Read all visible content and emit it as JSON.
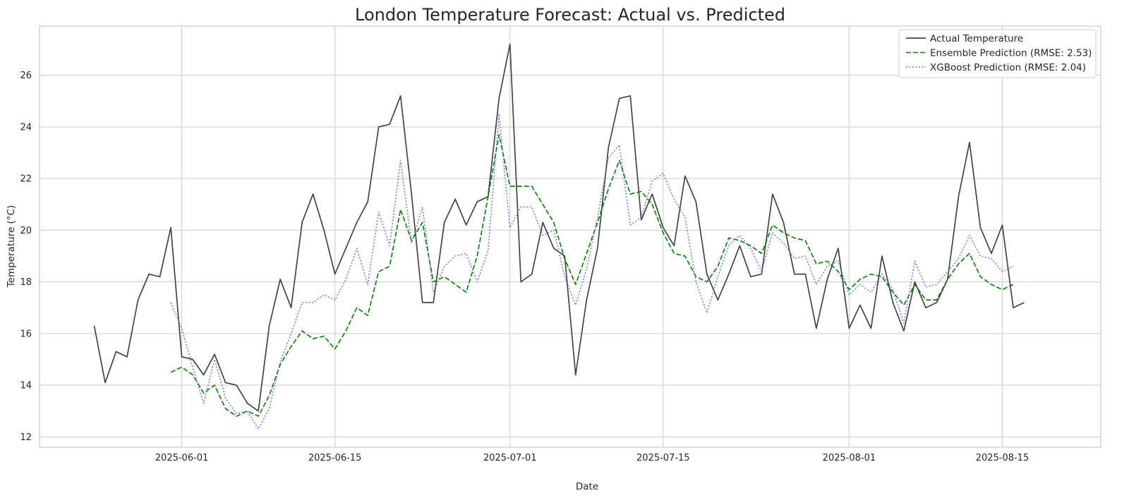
{
  "chart_data": {
    "type": "line",
    "title": "London Temperature Forecast: Actual vs. Predicted",
    "xlabel": "Date",
    "ylabel": "Temperature (°C)",
    "x_start": "2025-05-24",
    "xlim": [
      "2025-05-19",
      "2025-08-24"
    ],
    "ylim": [
      11.6,
      27.9
    ],
    "xticks": [
      "2025-06-01",
      "2025-06-15",
      "2025-07-01",
      "2025-07-15",
      "2025-08-01",
      "2025-08-15"
    ],
    "yticks": [
      12,
      14,
      16,
      18,
      20,
      22,
      24,
      26
    ],
    "grid": true,
    "legend_position": "top-right",
    "series": [
      {
        "name": "Actual Temperature",
        "color": "#444444",
        "style": "solid",
        "start": "2025-05-24",
        "values": [
          16.3,
          14.1,
          15.3,
          15.1,
          17.3,
          18.3,
          18.2,
          20.1,
          15.1,
          15.0,
          14.4,
          15.2,
          14.1,
          14.0,
          13.3,
          13.0,
          16.3,
          18.1,
          17.0,
          20.3,
          21.4,
          20.0,
          18.3,
          19.3,
          20.3,
          21.1,
          24.0,
          24.1,
          25.2,
          21.4,
          17.2,
          17.2,
          20.3,
          21.2,
          20.2,
          21.1,
          21.3,
          25.1,
          27.2,
          18.0,
          18.3,
          20.3,
          19.3,
          19.0,
          14.4,
          17.3,
          19.3,
          23.2,
          25.1,
          25.2,
          20.4,
          21.4,
          20.1,
          19.4,
          22.1,
          21.1,
          18.3,
          17.3,
          18.3,
          19.4,
          18.2,
          18.3,
          21.4,
          20.3,
          18.3,
          18.3,
          16.2,
          18.1,
          19.3,
          16.2,
          17.1,
          16.2,
          19.0,
          17.2,
          16.1,
          18.0,
          17.0,
          17.2,
          18.1,
          21.3,
          23.4,
          20.1,
          19.1,
          20.2,
          17.0,
          17.2
        ]
      },
      {
        "name": "Ensemble Prediction (RMSE: 2.53)",
        "color": "#008000",
        "style": "dashed",
        "start": "2025-05-31",
        "values": [
          14.5,
          14.7,
          14.4,
          13.7,
          14.0,
          13.1,
          12.8,
          13.0,
          12.8,
          13.6,
          14.8,
          15.5,
          16.1,
          15.8,
          15.9,
          15.4,
          16.1,
          17.0,
          16.7,
          18.4,
          18.6,
          20.8,
          19.6,
          20.3,
          18.0,
          18.2,
          17.9,
          17.6,
          19.0,
          21.3,
          23.7,
          21.7,
          21.7,
          21.7,
          21.0,
          20.3,
          18.9,
          17.9,
          19.1,
          20.3,
          21.6,
          22.7,
          21.4,
          21.5,
          21.0,
          19.9,
          19.1,
          19.0,
          18.2,
          18.0,
          18.6,
          19.7,
          19.6,
          19.4,
          19.1,
          20.2,
          19.9,
          19.7,
          19.6,
          18.7,
          18.8,
          18.4,
          17.7,
          18.1,
          18.3,
          18.2,
          17.6,
          17.1,
          17.9,
          17.3,
          17.3,
          18.1,
          18.7,
          19.1,
          18.2,
          17.9,
          17.7,
          17.9
        ]
      },
      {
        "name": "XGBoost Prediction (RMSE: 2.04)",
        "color": "#5b5bef",
        "style": "dotted",
        "start": "2025-05-31",
        "values": [
          17.2,
          16.2,
          14.7,
          13.3,
          15.0,
          13.5,
          12.9,
          13.0,
          12.3,
          13.1,
          14.9,
          16.0,
          17.2,
          17.2,
          17.5,
          17.3,
          18.1,
          19.3,
          17.9,
          20.7,
          19.4,
          22.7,
          19.5,
          20.9,
          17.6,
          18.6,
          19.0,
          19.1,
          18.0,
          19.2,
          24.5,
          20.1,
          20.9,
          20.9,
          19.8,
          20.0,
          18.2,
          17.1,
          18.5,
          20.5,
          22.8,
          23.3,
          20.2,
          20.5,
          21.9,
          22.2,
          21.2,
          20.5,
          18.0,
          16.8,
          18.2,
          19.4,
          19.8,
          19.3,
          18.4,
          19.9,
          19.5,
          18.9,
          19.0,
          17.9,
          18.6,
          18.8,
          17.5,
          17.9,
          17.6,
          18.3,
          17.7,
          16.4,
          18.8,
          17.8,
          17.9,
          18.4,
          18.9,
          19.8,
          19.0,
          18.9,
          18.4,
          18.6
        ]
      }
    ]
  }
}
